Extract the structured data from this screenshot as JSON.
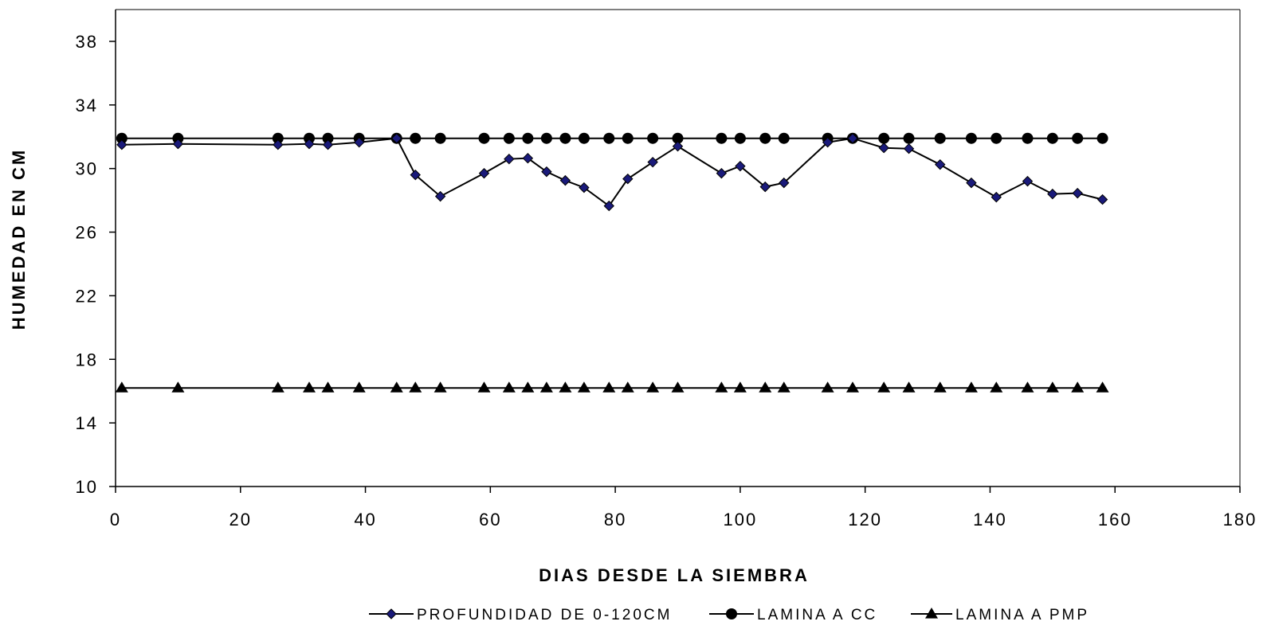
{
  "chart_data": {
    "type": "line",
    "title": "",
    "xlabel": "DIAS DESDE LA SIEMBRA",
    "ylabel": "HUMEDAD EN CM",
    "xlim": [
      0,
      180
    ],
    "ylim": [
      10,
      40
    ],
    "xticks": [
      "0",
      "20",
      "40",
      "60",
      "80",
      "100",
      "120",
      "140",
      "160",
      "180"
    ],
    "yticks": [
      "10",
      "14",
      "18",
      "22",
      "26",
      "30",
      "34",
      "38"
    ],
    "grid": false,
    "legend_position": "bottom",
    "x": [
      1,
      10,
      26,
      31,
      34,
      39,
      45,
      48,
      52,
      59,
      63,
      66,
      69,
      72,
      75,
      79,
      82,
      86,
      90,
      97,
      100,
      104,
      107,
      114,
      118,
      123,
      127,
      132,
      137,
      141,
      146,
      150,
      154,
      158
    ],
    "series": [
      {
        "name": "PROFUNDIDAD DE 0-120CM",
        "marker": "diamond",
        "color": "#1a1a7a",
        "values": [
          31.5,
          31.55,
          31.5,
          31.55,
          31.5,
          31.65,
          31.9,
          29.6,
          28.25,
          29.7,
          30.6,
          30.65,
          29.8,
          29.25,
          28.8,
          27.65,
          29.35,
          30.4,
          31.4,
          29.7,
          30.15,
          28.85,
          29.1,
          31.65,
          31.9,
          31.3,
          31.25,
          30.25,
          29.1,
          28.2,
          29.2,
          28.4,
          28.45,
          28.05
        ]
      },
      {
        "name": "LAMINA A CC",
        "marker": "circle",
        "color": "#000000",
        "values": [
          31.9,
          31.9,
          31.9,
          31.9,
          31.9,
          31.9,
          31.9,
          31.9,
          31.9,
          31.9,
          31.9,
          31.9,
          31.9,
          31.9,
          31.9,
          31.9,
          31.9,
          31.9,
          31.9,
          31.9,
          31.9,
          31.9,
          31.9,
          31.9,
          31.9,
          31.9,
          31.9,
          31.9,
          31.9,
          31.9,
          31.9,
          31.9,
          31.9,
          31.9
        ]
      },
      {
        "name": "LAMINA A PMP",
        "marker": "triangle",
        "color": "#000000",
        "values": [
          16.2,
          16.2,
          16.2,
          16.2,
          16.2,
          16.2,
          16.2,
          16.2,
          16.2,
          16.2,
          16.2,
          16.2,
          16.2,
          16.2,
          16.2,
          16.2,
          16.2,
          16.2,
          16.2,
          16.2,
          16.2,
          16.2,
          16.2,
          16.2,
          16.2,
          16.2,
          16.2,
          16.2,
          16.2,
          16.2,
          16.2,
          16.2,
          16.2,
          16.2
        ]
      }
    ]
  }
}
